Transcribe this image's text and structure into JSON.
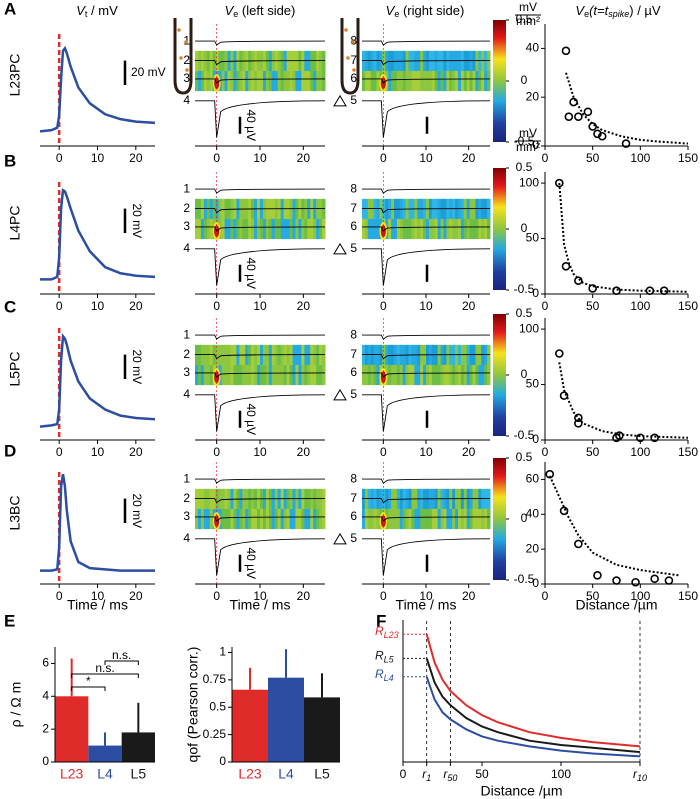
{
  "figure": {
    "panels": [
      "A",
      "B",
      "C",
      "D",
      "E",
      "F"
    ],
    "row_labels": [
      "L23PC",
      "L4PC",
      "L5PC",
      "L3BC"
    ],
    "column_titles": [
      {
        "v": "V",
        "sub": "t",
        "rest": " / mV"
      },
      {
        "v": "V",
        "sub": "e",
        "rest": " (left side)"
      },
      {
        "v": "V",
        "sub": "e",
        "rest": " (right side)"
      },
      {
        "v": "V",
        "sub": "e",
        "rest": "(t=t",
        "sub2": "spike",
        "rest2": ") / µV"
      }
    ],
    "channels_left": [
      "1",
      "2",
      "3",
      "4"
    ],
    "channels_right": [
      "8",
      "7",
      "6",
      "5"
    ],
    "ve_scale_bar": "40 µV",
    "ve_axis": {
      "xlim": [
        -5,
        25
      ],
      "xticks": [
        0,
        10,
        20
      ],
      "stimulus_time": 0,
      "xlabel": "Time / ms"
    },
    "colorbar": {
      "lim": [
        -0.5,
        0.5
      ],
      "ticks": [
        0.5,
        0,
        -0.5
      ],
      "unit_top": "mV",
      "unit_bottom": "mm²"
    }
  },
  "chart_data": [
    {
      "type": "line",
      "x": [
        -5,
        -2,
        -0.5,
        0,
        0.5,
        1,
        1.5,
        2,
        3,
        5,
        8,
        12,
        16,
        20,
        25
      ],
      "series": [
        {
          "color": "#2b4ea2",
          "values": [
            2,
            3,
            5,
            15,
            45,
            68,
            70,
            66,
            55,
            38,
            25,
            16,
            12,
            10,
            9
          ]
        }
      ],
      "xlim": [
        -5,
        25
      ],
      "xticks": [
        0,
        10,
        20
      ],
      "ylim": [
        -10,
        90
      ],
      "stimulus_time": 0,
      "scale_bar": {
        "value": 20,
        "label": "20 mV"
      }
    },
    {
      "type": "line",
      "x": [
        -5,
        -2,
        -0.5,
        0,
        0.5,
        1,
        1.5,
        2,
        3,
        5,
        8,
        12,
        16,
        20,
        25
      ],
      "series": [
        {
          "color": "#2b4ea2",
          "values": [
            2,
            2,
            4,
            20,
            60,
            75,
            74,
            70,
            60,
            42,
            25,
            12,
            7,
            5,
            4
          ]
        }
      ],
      "xlim": [
        -5,
        25
      ],
      "xticks": [
        0,
        10,
        20
      ],
      "ylim": [
        -10,
        90
      ],
      "stimulus_time": 0,
      "scale_bar": {
        "value": 20,
        "label": "20 mV"
      }
    },
    {
      "type": "line",
      "x": [
        -5,
        -2,
        -0.5,
        0,
        0.5,
        1,
        1.5,
        2,
        3,
        5,
        8,
        12,
        16,
        20,
        25
      ],
      "series": [
        {
          "color": "#2b4ea2",
          "values": [
            1,
            2,
            3,
            15,
            55,
            75,
            73,
            68,
            55,
            38,
            24,
            15,
            10,
            8,
            7
          ]
        }
      ],
      "xlim": [
        -5,
        25
      ],
      "xticks": [
        0,
        10,
        20
      ],
      "ylim": [
        -10,
        90
      ],
      "stimulus_time": 0,
      "scale_bar": {
        "value": 20,
        "label": "20 mV"
      }
    },
    {
      "type": "line",
      "x": [
        -5,
        -2,
        -0.5,
        0,
        0.5,
        1,
        1.5,
        2,
        3,
        5,
        8,
        12,
        16,
        20,
        25
      ],
      "series": [
        {
          "color": "#2b4ea2",
          "values": [
            1,
            1,
            2,
            20,
            70,
            80,
            70,
            50,
            25,
            8,
            3,
            2,
            1,
            1,
            1
          ]
        }
      ],
      "xlim": [
        -5,
        25
      ],
      "xticks": [
        0,
        10,
        20
      ],
      "ylim": [
        -10,
        90
      ],
      "stimulus_time": 0,
      "scale_bar": {
        "value": 20,
        "label": "20 mV"
      },
      "xlabel": "Time / ms"
    },
    {
      "type": "scatter",
      "x": [
        22,
        25,
        30,
        35,
        45,
        50,
        55,
        60,
        85
      ],
      "values": [
        39,
        12,
        18,
        12,
        14,
        8,
        5,
        4,
        1
      ],
      "fit": {
        "x": [
          22,
          30,
          40,
          50,
          60,
          80,
          100,
          120,
          150
        ],
        "values": [
          30,
          20,
          13,
          9,
          6.5,
          4,
          2.5,
          1.8,
          1
        ]
      },
      "xlim": [
        0,
        150
      ],
      "xticks": [
        0,
        50,
        100,
        150
      ],
      "ylim": [
        0,
        50
      ],
      "yticks": [
        0,
        20,
        40
      ]
    },
    {
      "type": "scatter",
      "x": [
        15,
        22,
        35,
        50,
        75,
        110,
        125
      ],
      "values": [
        100,
        25,
        12,
        5,
        3,
        3,
        3
      ],
      "fit": {
        "x": [
          15,
          20,
          25,
          30,
          40,
          50,
          75,
          100,
          150
        ],
        "values": [
          100,
          45,
          28,
          18,
          10,
          7,
          4,
          3,
          2
        ]
      },
      "xlim": [
        0,
        150
      ],
      "xticks": [
        0,
        50,
        100,
        150
      ],
      "ylim": [
        0,
        110
      ],
      "yticks": [
        0,
        50,
        100
      ]
    },
    {
      "type": "scatter",
      "x": [
        15,
        20,
        35,
        35,
        75,
        78,
        100,
        115
      ],
      "values": [
        78,
        40,
        20,
        15,
        2,
        4,
        2,
        2
      ],
      "fit": {
        "x": [
          15,
          20,
          30,
          40,
          60,
          80,
          100,
          150
        ],
        "values": [
          70,
          45,
          25,
          15,
          8,
          5,
          3.5,
          2
        ]
      },
      "xlim": [
        0,
        150
      ],
      "xticks": [
        0,
        50,
        100,
        150
      ],
      "ylim": [
        0,
        110
      ],
      "yticks": [
        0,
        50,
        100
      ]
    },
    {
      "type": "scatter",
      "x": [
        5,
        20,
        35,
        55,
        75,
        95,
        115,
        130
      ],
      "values": [
        63,
        42,
        23,
        5,
        2,
        1,
        3,
        2
      ],
      "fit": {
        "x": [
          5,
          15,
          25,
          35,
          50,
          75,
          100,
          140
        ],
        "values": [
          62,
          50,
          38,
          28,
          18,
          11,
          8,
          5
        ]
      },
      "xlim": [
        0,
        150
      ],
      "xticks": [
        0,
        50,
        100,
        150
      ],
      "ylim": [
        0,
        70
      ],
      "yticks": [
        0,
        20,
        40,
        60
      ],
      "xlabel": "Distance /µm"
    },
    {
      "type": "bar",
      "categories": [
        "L23",
        "L4",
        "L5"
      ],
      "colors": [
        "#e02b2b",
        "#2b4ea2",
        "#1a1a1a"
      ],
      "values": [
        4.0,
        1.0,
        1.8
      ],
      "errors": [
        2.3,
        0.8,
        1.8
      ],
      "ylim": [
        0,
        7
      ],
      "yticks": [
        0,
        2,
        4,
        6
      ],
      "ylabel": "ρ / Ω m",
      "significance": [
        "*",
        "n.s.",
        "n.s."
      ]
    },
    {
      "type": "bar",
      "categories": [
        "L23",
        "L4",
        "L5"
      ],
      "colors": [
        "#e02b2b",
        "#2b4ea2",
        "#1a1a1a"
      ],
      "values": [
        0.66,
        0.77,
        0.59
      ],
      "errors": [
        0.2,
        0.26,
        0.22
      ],
      "ylim": [
        0,
        1.05
      ],
      "yticks": [
        0,
        0.25,
        0.5,
        0.75,
        1
      ],
      "ylabel": "qof (Pearson corr.)"
    },
    {
      "type": "line",
      "x": [
        15,
        20,
        25,
        30,
        40,
        50,
        60,
        80,
        100,
        120,
        150
      ],
      "series": [
        {
          "name": "R",
          "sub": "L23",
          "color": "#e02b2b",
          "values": [
            90,
            70,
            58,
            50,
            40,
            33,
            28,
            21,
            17,
            14,
            11
          ]
        },
        {
          "name": "R",
          "sub": "L5",
          "color": "#1a1a1a",
          "values": [
            73,
            56,
            46,
            40,
            31,
            25,
            21,
            15,
            12,
            10,
            7
          ]
        },
        {
          "name": "R",
          "sub": "L4",
          "color": "#2b4ea2",
          "values": [
            60,
            44,
            35,
            30,
            23,
            18,
            15,
            11,
            8,
            6,
            4
          ]
        }
      ],
      "xlim": [
        0,
        150
      ],
      "xticks": [
        0,
        {
          "value": 15,
          "label": "r",
          "sub": "1"
        },
        {
          "value": 30,
          "label": "r",
          "sub": "50"
        },
        50,
        100,
        {
          "value": 150,
          "label": "r",
          "sub": "10"
        }
      ],
      "ylim": [
        0,
        100
      ],
      "y_axis": true,
      "xlabel": "Distance /µm"
    }
  ]
}
